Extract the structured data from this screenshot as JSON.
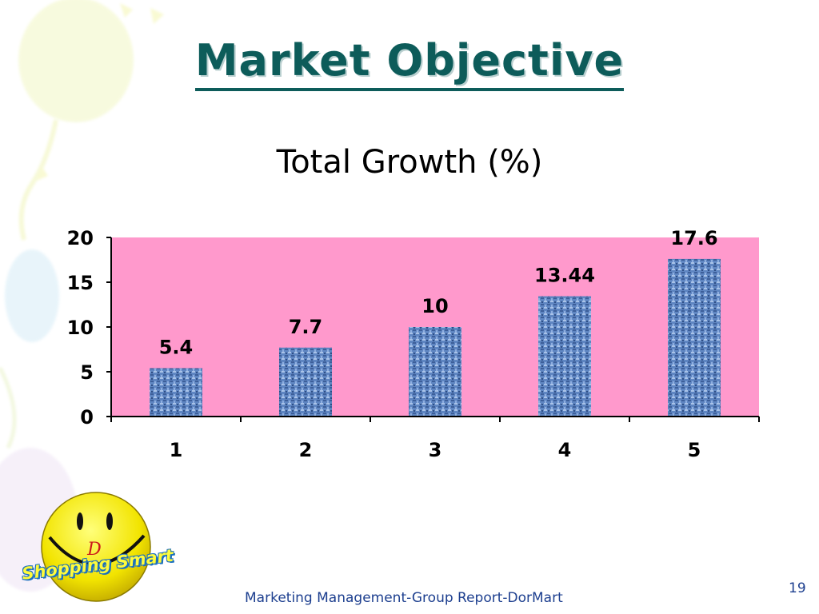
{
  "slide": {
    "title": "Market Objective",
    "footer": "Marketing Management-Group Report-DorMart",
    "page_number": "19"
  },
  "logo": {
    "letter": "D",
    "text": "Shopping Smart"
  },
  "colors": {
    "title": "#0d5c5a",
    "plot_background": "#ff99cc",
    "bar": "#5f86c2",
    "footer_text": "#1d3f8f"
  },
  "chart_data": {
    "type": "bar",
    "title": "Total Growth (%)",
    "categories": [
      "1",
      "2",
      "3",
      "4",
      "5"
    ],
    "values": [
      5.4,
      7.7,
      10,
      13.44,
      17.6
    ],
    "data_labels": [
      "5.4",
      "7.7",
      "10",
      "13.44",
      "17.6"
    ],
    "y_ticks": [
      "0",
      "5",
      "10",
      "15",
      "20"
    ],
    "ylim": [
      0,
      20
    ],
    "xlabel": "",
    "ylabel": "",
    "grid": false,
    "legend": "none"
  }
}
